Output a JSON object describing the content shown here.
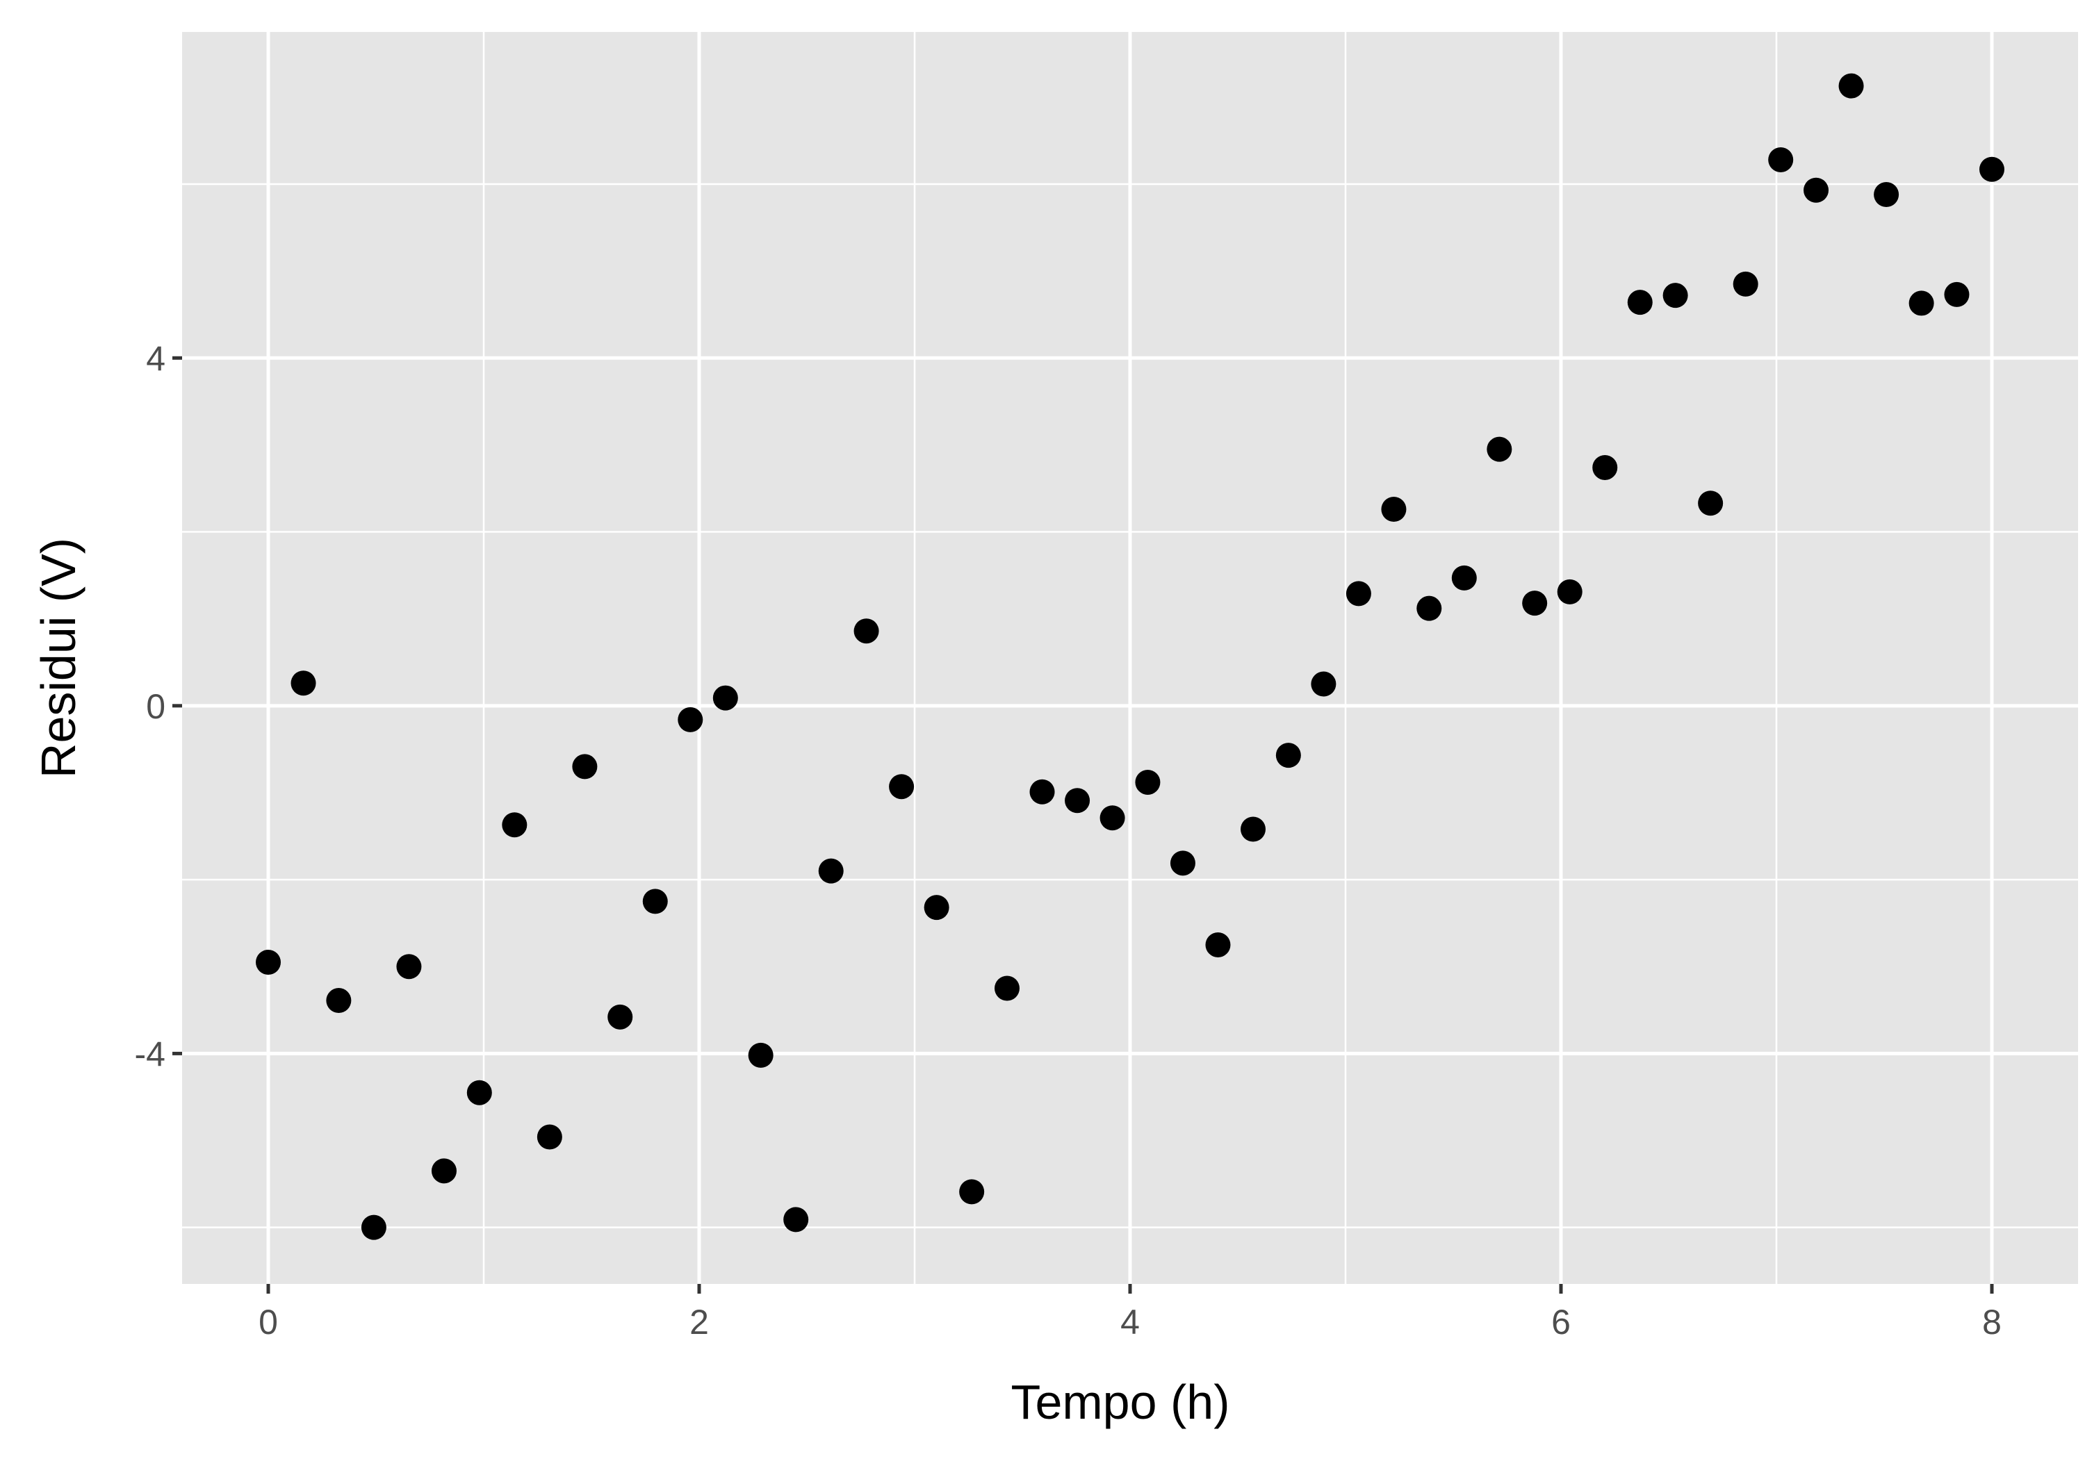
{
  "chart_data": {
    "type": "scatter",
    "title": "",
    "xlabel": "Tempo (h)",
    "ylabel": "Residui (V)",
    "xlim": [
      -0.4,
      8.4
    ],
    "ylim": [
      -6.65,
      7.75
    ],
    "x_ticks": [
      0,
      2,
      4,
      6,
      8
    ],
    "x_tick_labels": [
      "0",
      "2",
      "4",
      "6",
      "8"
    ],
    "y_ticks": [
      -4,
      0,
      4
    ],
    "y_tick_labels": [
      "-4",
      "0",
      "4"
    ],
    "grid": true,
    "legend": "none",
    "colors": {
      "panel": "#e5e5e5",
      "grid": "#ffffff",
      "point": "#000000"
    },
    "points": [
      {
        "x": 0.0,
        "y": -2.95
      },
      {
        "x": 0.163,
        "y": 0.26
      },
      {
        "x": 0.327,
        "y": -3.39
      },
      {
        "x": 0.49,
        "y": -6.0
      },
      {
        "x": 0.653,
        "y": -3.0
      },
      {
        "x": 0.816,
        "y": -5.35
      },
      {
        "x": 0.98,
        "y": -4.45
      },
      {
        "x": 1.143,
        "y": -1.37
      },
      {
        "x": 1.306,
        "y": -4.96
      },
      {
        "x": 1.469,
        "y": -0.7
      },
      {
        "x": 1.633,
        "y": -3.58
      },
      {
        "x": 1.796,
        "y": -2.25
      },
      {
        "x": 1.959,
        "y": -0.16
      },
      {
        "x": 2.122,
        "y": 0.09
      },
      {
        "x": 2.286,
        "y": -4.02
      },
      {
        "x": 2.449,
        "y": -5.91
      },
      {
        "x": 2.612,
        "y": -1.9
      },
      {
        "x": 2.776,
        "y": 0.86
      },
      {
        "x": 2.939,
        "y": -0.93
      },
      {
        "x": 3.102,
        "y": -2.32
      },
      {
        "x": 3.265,
        "y": -5.59
      },
      {
        "x": 3.429,
        "y": -3.25
      },
      {
        "x": 3.592,
        "y": -0.99
      },
      {
        "x": 3.755,
        "y": -1.09
      },
      {
        "x": 3.918,
        "y": -1.29
      },
      {
        "x": 4.082,
        "y": -0.88
      },
      {
        "x": 4.245,
        "y": -1.81
      },
      {
        "x": 4.408,
        "y": -2.75
      },
      {
        "x": 4.571,
        "y": -1.42
      },
      {
        "x": 4.735,
        "y": -0.57
      },
      {
        "x": 4.898,
        "y": 0.25
      },
      {
        "x": 5.061,
        "y": 1.29
      },
      {
        "x": 5.224,
        "y": 2.26
      },
      {
        "x": 5.388,
        "y": 1.12
      },
      {
        "x": 5.551,
        "y": 1.47
      },
      {
        "x": 5.714,
        "y": 2.95
      },
      {
        "x": 5.878,
        "y": 1.18
      },
      {
        "x": 6.041,
        "y": 1.31
      },
      {
        "x": 6.204,
        "y": 2.74
      },
      {
        "x": 6.367,
        "y": 4.64
      },
      {
        "x": 6.531,
        "y": 4.72
      },
      {
        "x": 6.694,
        "y": 2.33
      },
      {
        "x": 6.857,
        "y": 4.85
      },
      {
        "x": 7.02,
        "y": 6.28
      },
      {
        "x": 7.184,
        "y": 5.93
      },
      {
        "x": 7.347,
        "y": 7.13
      },
      {
        "x": 7.51,
        "y": 5.88
      },
      {
        "x": 7.673,
        "y": 4.63
      },
      {
        "x": 7.837,
        "y": 4.73
      },
      {
        "x": 8.0,
        "y": 6.17
      }
    ]
  }
}
